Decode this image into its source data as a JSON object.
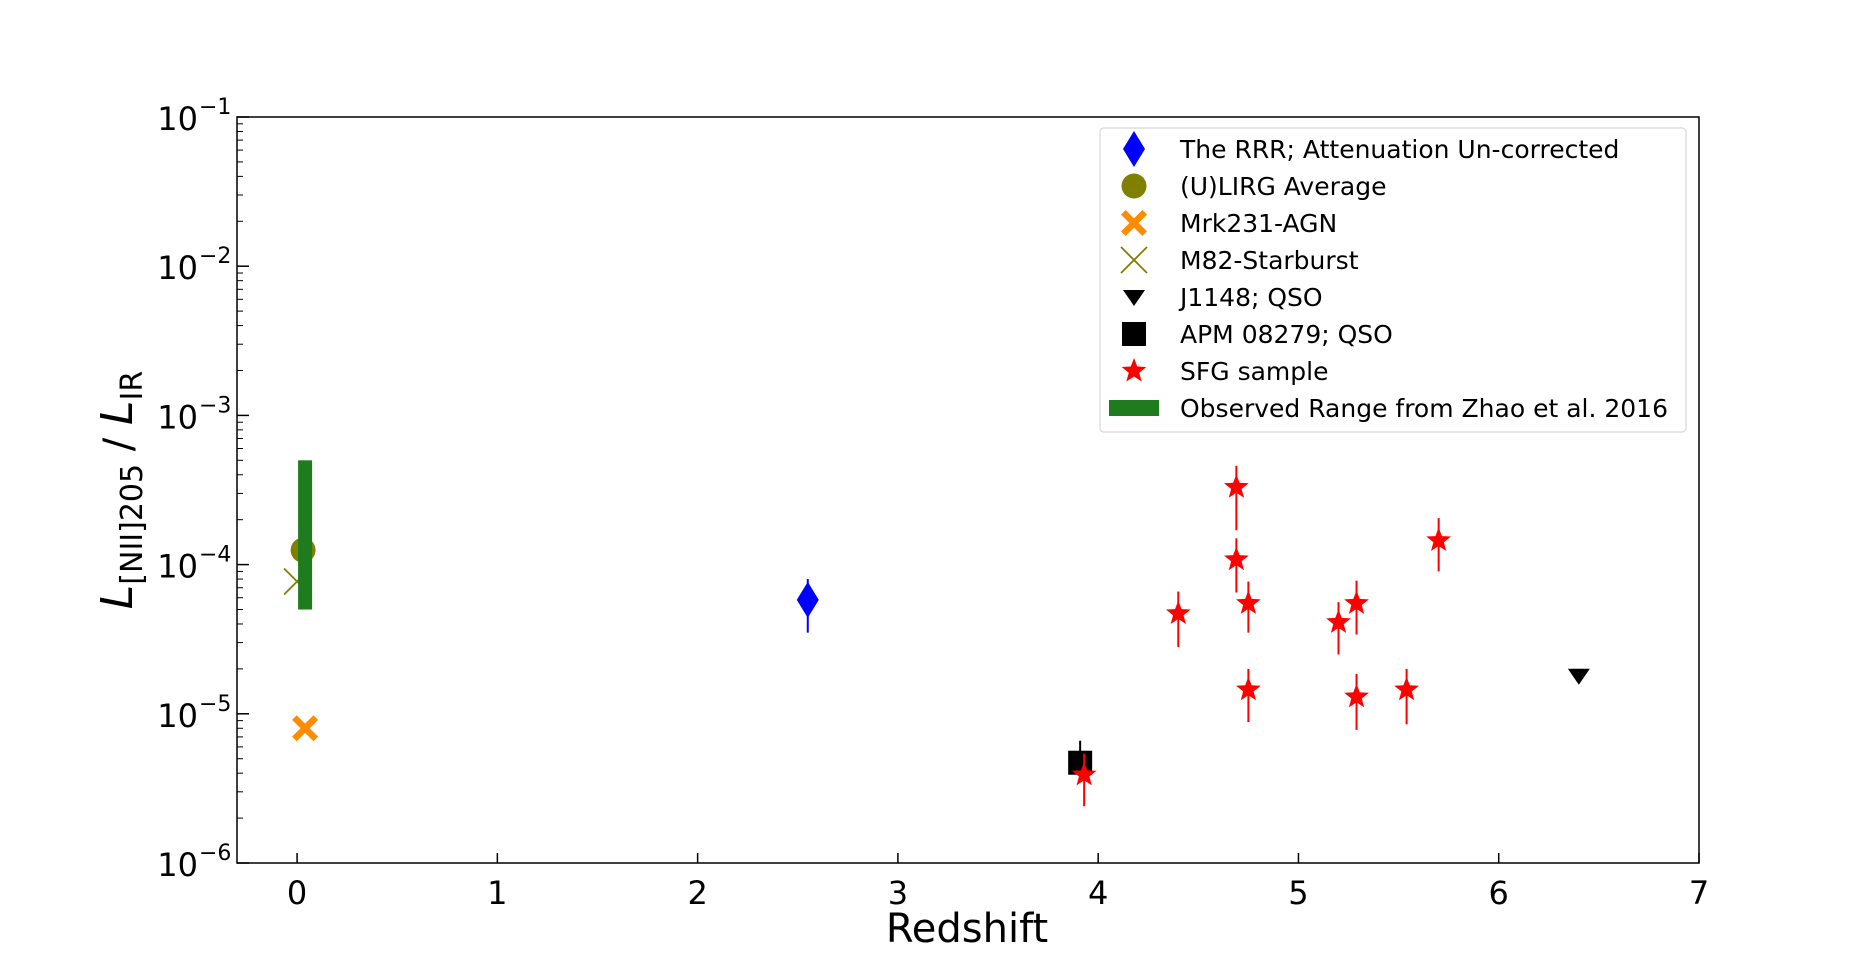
{
  "chart_data": {
    "type": "scatter",
    "title": "",
    "xlabel": "Redshift",
    "ylabel": {
      "main": "L",
      "sub": "[NII]205",
      "sep": " / ",
      "main2": "L",
      "sub2": "IR"
    },
    "xlim": [
      -0.3,
      7
    ],
    "ylim_log10": [
      -6,
      -1
    ],
    "x_ticks": [
      "0",
      "1",
      "2",
      "3",
      "4",
      "5",
      "6",
      "7"
    ],
    "y_ticks": [
      {
        "base": "10",
        "exp": "−6",
        "log": -6
      },
      {
        "base": "10",
        "exp": "−5",
        "log": -5
      },
      {
        "base": "10",
        "exp": "−4",
        "log": -4
      },
      {
        "base": "10",
        "exp": "−3",
        "log": -3
      },
      {
        "base": "10",
        "exp": "−2",
        "log": -2
      },
      {
        "base": "10",
        "exp": "−1",
        "log": -1
      }
    ],
    "legend_position": "top-right",
    "series": [
      {
        "name": "The RRR; Attenuation Un-corrected",
        "marker": "diamond",
        "color": "#0000ff",
        "points": [
          {
            "x": 2.55,
            "y": 5.8e-05,
            "ylo": 3.5e-05,
            "yhi": 8e-05
          }
        ]
      },
      {
        "name": "(U)LIRG Average",
        "marker": "circle",
        "color": "#808000",
        "points": [
          {
            "x": 0.03,
            "y": 0.000125
          }
        ]
      },
      {
        "name": "Mrk231-AGN",
        "marker": "xfilled",
        "color": "#ff8c00",
        "points": [
          {
            "x": 0.04,
            "y": 8e-06
          }
        ]
      },
      {
        "name": "M82-Starburst",
        "marker": "x",
        "color": "#808000",
        "points": [
          {
            "x": 0.0,
            "y": 7.7e-05
          }
        ]
      },
      {
        "name": "J1148; QSO",
        "marker": "triangle-down",
        "color": "#000000",
        "points": [
          {
            "x": 6.4,
            "y": 1.8e-05
          }
        ]
      },
      {
        "name": "APM 08279; QSO",
        "marker": "square",
        "color": "#000000",
        "points": [
          {
            "x": 3.91,
            "y": 4.7e-06,
            "ylo": 3.6e-06,
            "yhi": 6.6e-06
          }
        ]
      },
      {
        "name": "SFG sample",
        "marker": "star",
        "color": "#ff0000",
        "points": [
          {
            "x": 3.93,
            "y": 3.9e-06,
            "ylo": 2.4e-06,
            "yhi": 5.4e-06
          },
          {
            "x": 4.4,
            "y": 4.7e-05,
            "ylo": 2.8e-05,
            "yhi": 6.6e-05
          },
          {
            "x": 4.69,
            "y": 0.00033,
            "ylo": 0.00017,
            "yhi": 0.00046
          },
          {
            "x": 4.69,
            "y": 0.000108,
            "ylo": 6.5e-05,
            "yhi": 0.00015
          },
          {
            "x": 4.75,
            "y": 5.5e-05,
            "ylo": 3.5e-05,
            "yhi": 7.7e-05
          },
          {
            "x": 4.75,
            "y": 1.45e-05,
            "ylo": 8.8e-06,
            "yhi": 2e-05
          },
          {
            "x": 5.2,
            "y": 4.1e-05,
            "ylo": 2.5e-05,
            "yhi": 5.6e-05
          },
          {
            "x": 5.29,
            "y": 5.5e-05,
            "ylo": 3.4e-05,
            "yhi": 7.8e-05
          },
          {
            "x": 5.29,
            "y": 1.3e-05,
            "ylo": 7.8e-06,
            "yhi": 1.85e-05
          },
          {
            "x": 5.54,
            "y": 1.45e-05,
            "ylo": 8.5e-06,
            "yhi": 2e-05
          },
          {
            "x": 5.7,
            "y": 0.000145,
            "ylo": 9e-05,
            "yhi": 0.000205
          }
        ]
      },
      {
        "name": "Observed Range from Zhao et al. 2016",
        "marker": "range-bar",
        "color": "#1e7b1e",
        "points": [
          {
            "x": 0.04,
            "ymin": 5e-05,
            "ymax": 0.0005
          }
        ]
      }
    ]
  }
}
